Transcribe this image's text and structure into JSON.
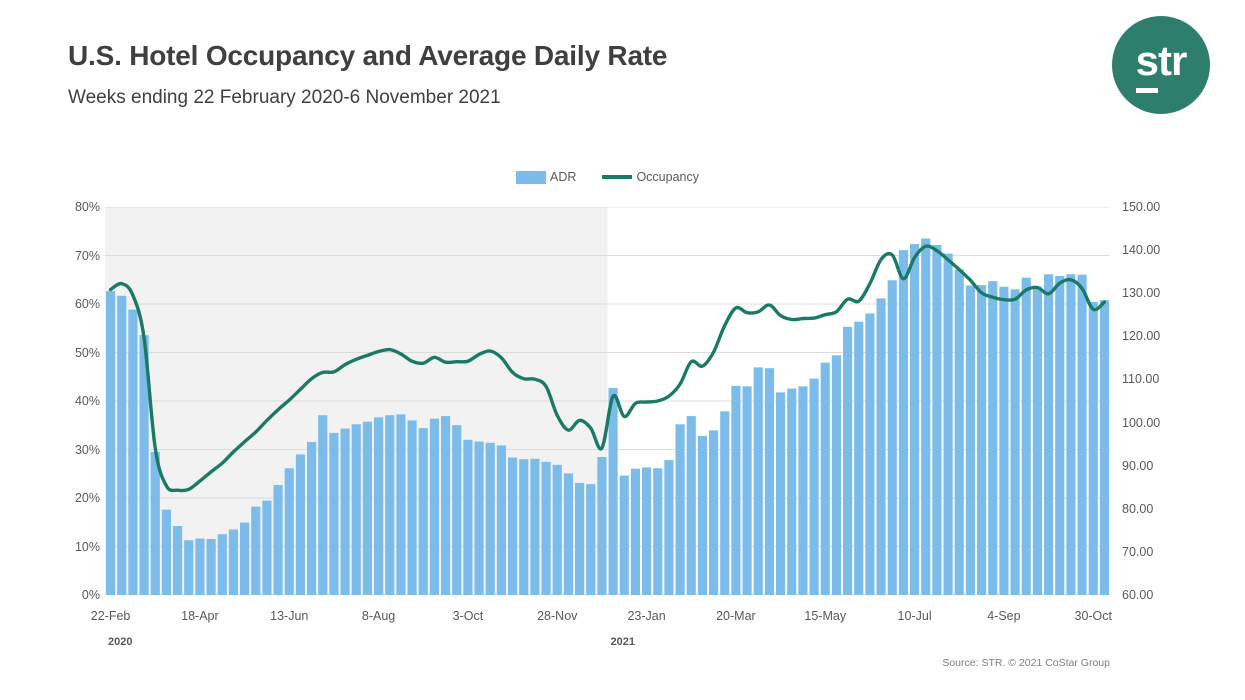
{
  "header": {
    "title": "U.S. Hotel Occupancy and Average Daily Rate",
    "subtitle": "Weeks ending 22 February 2020-6 November 2021"
  },
  "logo": {
    "text": "str",
    "bg_color": "#2E7E6E",
    "text_color": "#FFFFFF"
  },
  "legend": [
    {
      "label": "ADR",
      "type": "bar",
      "color": "#7CBCEB"
    },
    {
      "label": "Occupancy",
      "type": "line",
      "color": "#1B7A66"
    }
  ],
  "source": "Source: STR. © 2021 CoStar Group",
  "colors": {
    "bar": "#7CBCEB",
    "line": "#1B7A66",
    "shaded_band": "#F2F2F2",
    "gridline": "#DCDCDC",
    "axis_text": "#595959",
    "title_text": "#3F3F3F"
  },
  "chart_data": {
    "type": "bar",
    "subtype": "combo bar+line, dual axis, weekly time series",
    "title": "U.S. Hotel Occupancy and Average Daily Rate",
    "subtitle": "Weeks ending 22 February 2020-6 November 2021",
    "grid": true,
    "legend_position": "top-center",
    "ylim_left": [
      0,
      80
    ],
    "ylim_right": [
      60,
      150
    ],
    "left_axis_ticks": [
      "0%",
      "10%",
      "20%",
      "30%",
      "40%",
      "50%",
      "60%",
      "70%",
      "80%"
    ],
    "right_axis_ticks": [
      "60.00",
      "70.00",
      "80.00",
      "90.00",
      "100.00",
      "110.00",
      "120.00",
      "130.00",
      "140.00",
      "150.00"
    ],
    "x_tick_labels": [
      {
        "index": 0,
        "label": "22-Feb"
      },
      {
        "index": 8,
        "label": "18-Apr"
      },
      {
        "index": 16,
        "label": "13-Jun"
      },
      {
        "index": 24,
        "label": "8-Aug"
      },
      {
        "index": 32,
        "label": "3-Oct"
      },
      {
        "index": 40,
        "label": "28-Nov"
      },
      {
        "index": 48,
        "label": "23-Jan"
      },
      {
        "index": 56,
        "label": "20-Mar"
      },
      {
        "index": 64,
        "label": "15-May"
      },
      {
        "index": 72,
        "label": "10-Jul"
      },
      {
        "index": 80,
        "label": "4-Sep"
      },
      {
        "index": 88,
        "label": "30-Oct"
      }
    ],
    "year_markers": [
      {
        "label": "2020",
        "index": 0
      },
      {
        "label": "2021",
        "index": 45
      }
    ],
    "shaded_region": {
      "from_index": 0,
      "to_index": 45,
      "color": "#F2F2F2",
      "meaning": "2020 weeks"
    },
    "week_ending": [
      "2020-02-22",
      "2020-02-29",
      "2020-03-07",
      "2020-03-14",
      "2020-03-21",
      "2020-03-28",
      "2020-04-04",
      "2020-04-11",
      "2020-04-18",
      "2020-04-25",
      "2020-05-02",
      "2020-05-09",
      "2020-05-16",
      "2020-05-23",
      "2020-05-30",
      "2020-06-06",
      "2020-06-13",
      "2020-06-20",
      "2020-06-27",
      "2020-07-04",
      "2020-07-11",
      "2020-07-18",
      "2020-07-25",
      "2020-08-01",
      "2020-08-08",
      "2020-08-15",
      "2020-08-22",
      "2020-08-29",
      "2020-09-05",
      "2020-09-12",
      "2020-09-19",
      "2020-09-26",
      "2020-10-03",
      "2020-10-10",
      "2020-10-17",
      "2020-10-24",
      "2020-10-31",
      "2020-11-07",
      "2020-11-14",
      "2020-11-21",
      "2020-11-28",
      "2020-12-05",
      "2020-12-12",
      "2020-12-19",
      "2020-12-26",
      "2021-01-02",
      "2021-01-09",
      "2021-01-16",
      "2021-01-23",
      "2021-01-30",
      "2021-02-06",
      "2021-02-13",
      "2021-02-20",
      "2021-02-27",
      "2021-03-06",
      "2021-03-13",
      "2021-03-20",
      "2021-03-27",
      "2021-04-03",
      "2021-04-10",
      "2021-04-17",
      "2021-04-24",
      "2021-05-01",
      "2021-05-08",
      "2021-05-15",
      "2021-05-22",
      "2021-05-29",
      "2021-06-05",
      "2021-06-12",
      "2021-06-19",
      "2021-06-26",
      "2021-07-03",
      "2021-07-10",
      "2021-07-17",
      "2021-07-24",
      "2021-07-31",
      "2021-08-07",
      "2021-08-14",
      "2021-08-21",
      "2021-08-28",
      "2021-09-04",
      "2021-09-11",
      "2021-09-18",
      "2021-09-25",
      "2021-10-02",
      "2021-10-09",
      "2021-10-16",
      "2021-10-23",
      "2021-10-30",
      "2021-11-06"
    ],
    "series": [
      {
        "name": "ADR",
        "type": "bar",
        "axis": "right",
        "unit": "USD",
        "color": "#7CBCEB",
        "values": [
          130.5,
          129.4,
          126.2,
          120.3,
          93.2,
          79.8,
          76.0,
          72.7,
          73.1,
          73.0,
          74.1,
          75.2,
          76.8,
          80.5,
          81.9,
          85.5,
          89.4,
          92.6,
          95.5,
          101.7,
          97.6,
          98.6,
          99.6,
          100.2,
          101.2,
          101.7,
          101.9,
          100.5,
          98.7,
          100.9,
          101.5,
          99.4,
          96.0,
          95.6,
          95.3,
          94.7,
          91.9,
          91.5,
          91.6,
          90.9,
          90.2,
          88.2,
          86.0,
          85.7,
          92.0,
          108.0,
          87.7,
          89.3,
          89.6,
          89.4,
          91.3,
          99.6,
          101.5,
          96.9,
          98.2,
          102.6,
          108.5,
          108.4,
          112.8,
          112.6,
          107.0,
          107.9,
          108.4,
          110.2,
          113.9,
          115.6,
          122.2,
          123.4,
          125.3,
          128.8,
          133.0,
          140.0,
          141.4,
          142.7,
          141.2,
          139.2,
          135.5,
          131.8,
          131.9,
          132.8,
          131.5,
          130.9,
          133.6,
          131.5,
          134.4,
          134.0,
          134.4,
          134.3,
          128.0,
          128.4
        ]
      },
      {
        "name": "Occupancy",
        "type": "line",
        "axis": "left",
        "unit": "percent",
        "color": "#1B7A66",
        "values": [
          63.0,
          64.2,
          61.8,
          53.0,
          30.2,
          22.5,
          21.6,
          21.8,
          23.5,
          25.4,
          27.2,
          29.5,
          31.6,
          33.6,
          36.0,
          38.2,
          40.2,
          42.4,
          44.6,
          45.9,
          46.0,
          47.5,
          48.6,
          49.4,
          50.2,
          50.6,
          49.7,
          48.2,
          47.8,
          49.0,
          48.0,
          48.1,
          48.2,
          49.6,
          50.3,
          48.9,
          45.9,
          44.6,
          44.5,
          43.0,
          37.0,
          34.0,
          36.0,
          34.4,
          30.3,
          41.0,
          36.8,
          39.5,
          39.8,
          40.0,
          41.0,
          43.5,
          48.1,
          47.2,
          50.1,
          55.6,
          59.2,
          58.2,
          58.4,
          59.8,
          57.6,
          56.8,
          57.0,
          57.1,
          57.8,
          58.4,
          61.0,
          60.6,
          64.2,
          69.2,
          70.1,
          65.2,
          69.6,
          71.9,
          71.0,
          69.1,
          67.1,
          64.9,
          62.3,
          61.4,
          60.9,
          61.0,
          62.9,
          63.4,
          62.1,
          64.3,
          65.0,
          63.2,
          58.9,
          60.4
        ]
      }
    ]
  }
}
